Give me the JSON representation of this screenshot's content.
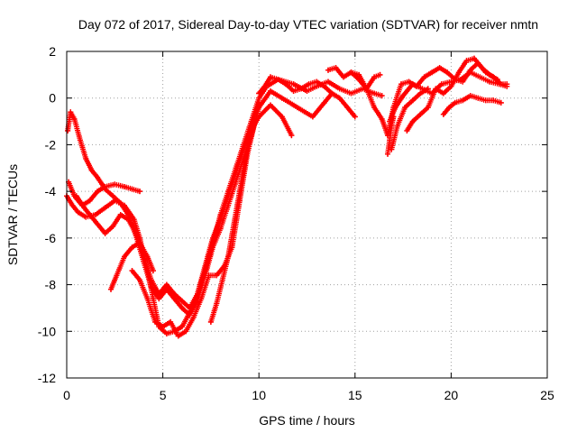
{
  "chart_data": {
    "type": "scatter",
    "title": "Day 072 of 2017, Sidereal Day-to-day VTEC variation (SDTVAR) for receiver nmtn",
    "xlabel": "GPS time / hours",
    "ylabel": "SDTVAR / TECUs",
    "xlim": [
      0,
      25
    ],
    "ylim": [
      -12,
      2
    ],
    "xticks": [
      "0",
      "5",
      "10",
      "15",
      "20",
      "25"
    ],
    "yticks": [
      "2",
      "0",
      "-2",
      "-4",
      "-6",
      "-8",
      "-10",
      "-12"
    ],
    "grid": true,
    "marker": "+",
    "color": "#ff0000",
    "series": [
      {
        "name": "s1",
        "x": [
          0,
          0.3,
          0.6,
          1.0,
          1.5,
          2.0,
          2.5,
          3.0,
          3.5,
          3.8,
          4.2,
          4.5,
          4.8,
          5.2,
          5.6,
          6.0,
          6.4,
          6.8,
          7.2,
          7.6,
          8.0,
          8.4,
          8.8,
          9.2,
          9.6,
          10.0,
          10.4,
          11.0,
          11.8,
          12.5,
          13.0,
          13.6,
          14.2,
          14.8,
          15.4,
          16.0,
          16.4
        ],
        "y": [
          -4.2,
          -4.6,
          -4.9,
          -5.1,
          -5.0,
          -4.7,
          -4.4,
          -4.6,
          -5.2,
          -6.0,
          -7.4,
          -8.6,
          -9.8,
          -10.1,
          -10.0,
          -9.8,
          -9.2,
          -8.4,
          -7.4,
          -6.2,
          -5.0,
          -4.0,
          -3.0,
          -2.0,
          -1.0,
          0.0,
          0.5,
          0.8,
          0.6,
          0.3,
          0.5,
          0.7,
          0.4,
          0.2,
          0.4,
          0.2,
          0.1
        ]
      },
      {
        "name": "s2",
        "x": [
          0.1,
          0.4,
          0.8,
          1.2,
          1.6,
          2.0,
          2.5,
          3.0,
          3.4,
          3.8
        ],
        "y": [
          -3.6,
          -4.2,
          -4.6,
          -4.4,
          -4.0,
          -3.8,
          -3.7,
          -3.8,
          -3.9,
          -4.0
        ]
      },
      {
        "name": "s3",
        "x": [
          0.05,
          0.2,
          0.4,
          0.7,
          1.0,
          1.3,
          1.6,
          2.0,
          2.4,
          2.8,
          3.2,
          3.6,
          4.0,
          4.4,
          4.8,
          5.2,
          5.6,
          6.0,
          6.4,
          6.8,
          7.2,
          7.6,
          8.0,
          8.4,
          8.8,
          9.2,
          9.6,
          10.0,
          10.6,
          11.2,
          12.0,
          12.8,
          13.4,
          13.8,
          14.2,
          14.6,
          15.0
        ],
        "y": [
          -1.4,
          -0.6,
          -0.9,
          -1.8,
          -2.6,
          -3.1,
          -3.4,
          -3.9,
          -4.2,
          -4.5,
          -5.0,
          -5.9,
          -7.0,
          -8.1,
          -8.6,
          -8.2,
          -8.6,
          -9.0,
          -9.3,
          -8.7,
          -7.6,
          -6.4,
          -5.6,
          -4.6,
          -3.6,
          -2.6,
          -1.6,
          -0.4,
          0.3,
          0.0,
          -0.4,
          -0.8,
          -0.2,
          0.2,
          0.0,
          -0.4,
          -0.8
        ]
      },
      {
        "name": "s4",
        "x": [
          0.5,
          1.0,
          1.5,
          2.0,
          2.4,
          2.8,
          3.2,
          3.6,
          4.0,
          4.4,
          4.8,
          5.2,
          5.6,
          6.0,
          6.4,
          6.8,
          7.2,
          7.6,
          8.0,
          8.4,
          8.8,
          9.2,
          9.6,
          10.0,
          10.6,
          11.2,
          11.7
        ],
        "y": [
          -4.2,
          -4.8,
          -5.3,
          -5.8,
          -5.5,
          -5.0,
          -5.2,
          -5.8,
          -6.8,
          -7.8,
          -8.4,
          -8.0,
          -8.4,
          -8.7,
          -9.0,
          -8.4,
          -7.2,
          -6.0,
          -5.2,
          -4.2,
          -3.2,
          -2.2,
          -1.4,
          -0.8,
          -0.3,
          -0.8,
          -1.6
        ]
      },
      {
        "name": "s5",
        "x": [
          2.3,
          2.6,
          3.0,
          3.4,
          3.8,
          4.2,
          4.5
        ],
        "y": [
          -8.2,
          -7.6,
          -6.8,
          -6.4,
          -6.2,
          -6.8,
          -7.4
        ]
      },
      {
        "name": "s6",
        "x": [
          3.4,
          3.8,
          4.2,
          4.6,
          5.0,
          5.4,
          5.8,
          6.2,
          6.6,
          7.0,
          7.4,
          7.8,
          8.2,
          8.6,
          9.0,
          9.4,
          9.8
        ],
        "y": [
          -7.4,
          -7.8,
          -8.6,
          -9.6,
          -9.8,
          -9.6,
          -10.2,
          -10.0,
          -9.4,
          -8.6,
          -7.6,
          -7.6,
          -7.2,
          -6.4,
          -4.4,
          -2.4,
          -1.0
        ]
      },
      {
        "name": "s7",
        "x": [
          7.5,
          7.8,
          8.1,
          8.4,
          8.7,
          9.0,
          9.3,
          9.6,
          10.0
        ],
        "y": [
          -9.6,
          -8.8,
          -7.8,
          -6.8,
          -5.4,
          -4.0,
          -2.6,
          -1.2,
          -0.2
        ]
      },
      {
        "name": "s8",
        "x": [
          14.8,
          15.2,
          15.6,
          16.0,
          16.4,
          16.7,
          17.0,
          17.4,
          17.8,
          18.2,
          18.6,
          19.0,
          19.4,
          19.8,
          20.2,
          20.6,
          21.0,
          21.4,
          21.8,
          22.2,
          22.6,
          22.9
        ],
        "y": [
          1.1,
          1.0,
          0.4,
          -0.4,
          -0.9,
          -1.6,
          -0.4,
          0.6,
          0.7,
          0.5,
          0.9,
          1.1,
          1.3,
          1.1,
          0.8,
          0.7,
          1.2,
          1.5,
          1.1,
          0.9,
          0.6,
          0.6
        ]
      },
      {
        "name": "s9",
        "x": [
          13.6,
          14.0,
          14.4,
          14.8,
          15.2,
          15.6,
          16.0,
          16.3
        ],
        "y": [
          1.2,
          1.3,
          0.9,
          1.1,
          0.8,
          0.4,
          0.9,
          1.0
        ]
      },
      {
        "name": "s10",
        "x": [
          16.8,
          17.1,
          17.5,
          18.0,
          18.5,
          19.0,
          19.5,
          20.0,
          20.5,
          21.0,
          21.5,
          22.0,
          22.5,
          22.9
        ],
        "y": [
          -1.0,
          -0.4,
          0.1,
          0.6,
          0.4,
          0.2,
          0.6,
          0.7,
          0.8,
          1.1,
          0.9,
          0.7,
          0.6,
          0.5
        ]
      },
      {
        "name": "s11",
        "x": [
          16.9,
          17.2,
          17.6,
          18.0,
          18.4,
          18.8
        ],
        "y": [
          -2.2,
          -1.2,
          -0.4,
          -0.1,
          0.2,
          0.4
        ]
      },
      {
        "name": "s12",
        "x": [
          16.7,
          16.8,
          16.9,
          17.0
        ],
        "y": [
          -2.4,
          -1.8,
          -1.2,
          -0.8
        ]
      },
      {
        "name": "s13",
        "x": [
          17.7,
          18.0,
          18.4,
          18.8,
          19.2,
          19.6,
          20.0,
          20.4,
          20.8,
          21.2,
          21.6,
          22.0,
          22.4
        ],
        "y": [
          -1.4,
          -1.0,
          -0.7,
          -0.4,
          0.4,
          0.2,
          0.5,
          1.1,
          1.6,
          1.7,
          1.3,
          1.0,
          0.8
        ]
      },
      {
        "name": "s14",
        "x": [
          19.6,
          19.9,
          20.2,
          20.6,
          21.0,
          21.4,
          21.8,
          22.2,
          22.6
        ],
        "y": [
          -0.7,
          -0.4,
          -0.2,
          -0.1,
          0.1,
          0.0,
          -0.1,
          -0.1,
          -0.2
        ]
      },
      {
        "name": "s15",
        "x": [
          10.0,
          10.3,
          10.6,
          11.0,
          11.4,
          11.8,
          12.2,
          12.6,
          13.0,
          13.4,
          13.8
        ],
        "y": [
          0.2,
          0.5,
          0.9,
          0.8,
          0.6,
          0.3,
          0.4,
          0.6,
          0.7,
          0.5,
          0.2
        ]
      }
    ]
  }
}
